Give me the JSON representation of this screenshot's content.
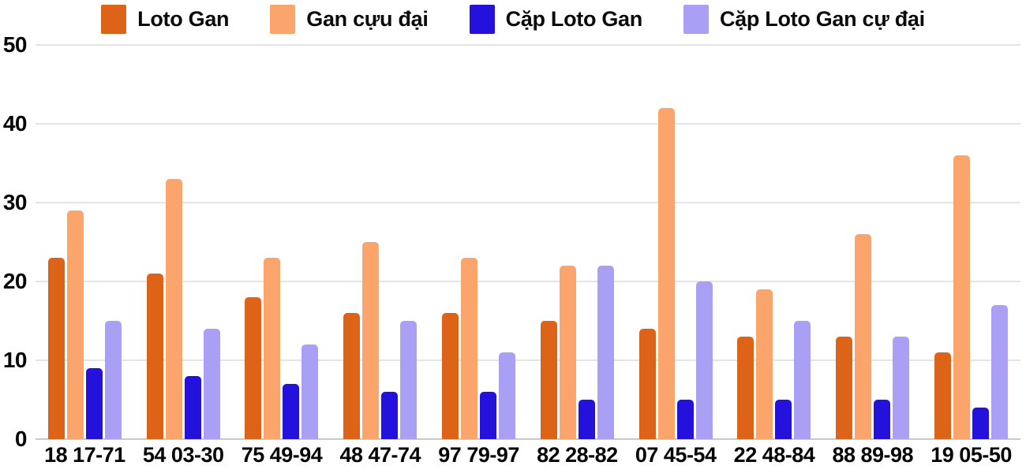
{
  "chart_data": {
    "type": "bar",
    "title": "",
    "xlabel": "",
    "ylabel": "",
    "categories": [
      "18 17-71",
      "54 03-30",
      "75 49-94",
      "48 47-74",
      "97 79-97",
      "82 28-82",
      "07 45-54",
      "22 48-84",
      "88 89-98",
      "19 05-50"
    ],
    "series": [
      {
        "name": "Loto Gan",
        "color": "#dc6317",
        "values": [
          23,
          21,
          18,
          16,
          16,
          15,
          14,
          13,
          13,
          11
        ]
      },
      {
        "name": "Gan cựu đại",
        "color": "#fba46b",
        "values": [
          29,
          33,
          23,
          25,
          23,
          22,
          42,
          19,
          26,
          36
        ]
      },
      {
        "name": "Cặp Loto Gan",
        "color": "#2412dc",
        "values": [
          9,
          8,
          7,
          6,
          6,
          5,
          5,
          5,
          5,
          4
        ]
      },
      {
        "name": "Cặp Loto Gan cự đại",
        "color": "#a9a0f5",
        "values": [
          15,
          14,
          12,
          15,
          11,
          22,
          20,
          15,
          13,
          17
        ]
      }
    ],
    "ylim": [
      0,
      50
    ],
    "ytick_step": 10,
    "ytick_labels": [
      "0",
      "10",
      "20",
      "30",
      "40",
      "50"
    ],
    "grid": true,
    "legend_position": "top",
    "colors": {
      "grid": "#e4e4e4",
      "baseline": "#c9c9c9",
      "text": "#060606"
    }
  }
}
